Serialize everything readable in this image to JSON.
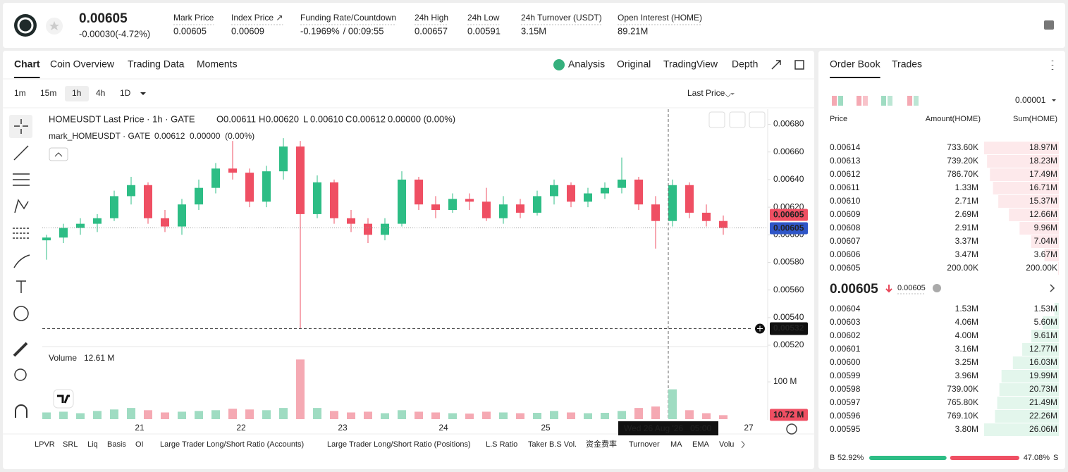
{
  "header": {
    "price": "0.00605",
    "change": "-0.00030(-4.72%)",
    "stats": [
      {
        "label": "Mark Price",
        "value": "0.00605"
      },
      {
        "label": "Index Price ↗",
        "value": "0.00609"
      },
      {
        "label": "Funding Rate/Countdown",
        "value": "-0.1969%",
        "extra": "/ 00:09:55"
      },
      {
        "label": "24h High",
        "value": "0.00657"
      },
      {
        "label": "24h Low",
        "value": "0.00591"
      },
      {
        "label": "24h Turnover (USDT)",
        "value": "3.15M"
      },
      {
        "label": "Open Interest (HOME)",
        "value": "89.21M"
      }
    ]
  },
  "tabs": [
    "Chart",
    "Coin Overview",
    "Trading Data",
    "Moments"
  ],
  "views": [
    "Analysis",
    "Original",
    "TradingView",
    "Depth"
  ],
  "intervals": [
    "1m",
    "15m",
    "1h",
    "4h",
    "1D"
  ],
  "price_source": "Last Price",
  "chart": {
    "legend": {
      "symbol": "HOMEUSDT Last Price · 1h · GATE",
      "ohlc": [
        {
          "k": "O",
          "v": "0.00611"
        },
        {
          "k": "H",
          "v": "0.00620"
        },
        {
          "k": "L",
          "v": "0.00610"
        },
        {
          "k": "C",
          "v": "0.00612"
        }
      ],
      "change": "0.00000 (0.00%)",
      "mark": "mark_HOMEUSDT · GATE",
      "mark_values": "0.00612  0.00000  (0.00%)"
    },
    "ylim": [
      0.00519,
      0.00691
    ],
    "yticks": [
      {
        "value": 0.0068,
        "label": "0.00680"
      },
      {
        "value": 0.0066,
        "label": "0.00660"
      },
      {
        "value": 0.0064,
        "label": "0.00640"
      },
      {
        "value": 0.0062,
        "label": "0.00620"
      },
      {
        "value": 0.006,
        "label": "0.00600"
      },
      {
        "value": 0.0058,
        "label": "0.00580"
      },
      {
        "value": 0.0056,
        "label": "0.00560"
      },
      {
        "value": 0.0054,
        "label": "0.00540"
      },
      {
        "value": 0.0052,
        "label": "0.00520"
      }
    ],
    "last_price": {
      "value": 0.00605,
      "label": "0.00605"
    },
    "mark_price": {
      "value": 0.00605,
      "label": "0.00605"
    },
    "low_marker": {
      "value": 0.00532,
      "label": "0.00532"
    },
    "crosshair": "Wed 26 Aug '26   05:00",
    "days": [
      "21",
      "22",
      "23",
      "24",
      "25",
      "27"
    ],
    "candles": [
      [
        0.00596,
        0.006,
        0.00582,
        0.00598
      ],
      [
        0.00598,
        0.00608,
        0.00594,
        0.00605
      ],
      [
        0.00605,
        0.00612,
        0.006,
        0.00608
      ],
      [
        0.00608,
        0.00615,
        0.00602,
        0.00612
      ],
      [
        0.00612,
        0.00632,
        0.0061,
        0.00628
      ],
      [
        0.00628,
        0.00642,
        0.00622,
        0.00636
      ],
      [
        0.00636,
        0.00638,
        0.00608,
        0.00612
      ],
      [
        0.00612,
        0.00618,
        0.00602,
        0.00606
      ],
      [
        0.00606,
        0.00626,
        0.006,
        0.00622
      ],
      [
        0.00622,
        0.0064,
        0.00618,
        0.00634
      ],
      [
        0.00634,
        0.00652,
        0.0063,
        0.00648
      ],
      [
        0.00648,
        0.00668,
        0.0064,
        0.00645
      ],
      [
        0.00645,
        0.00648,
        0.0062,
        0.00624
      ],
      [
        0.00624,
        0.0065,
        0.0062,
        0.00646
      ],
      [
        0.00646,
        0.0067,
        0.0064,
        0.00664
      ],
      [
        0.00664,
        0.00668,
        0.00532,
        0.00615
      ],
      [
        0.00615,
        0.00643,
        0.00612,
        0.00638
      ],
      [
        0.00638,
        0.0064,
        0.00608,
        0.00612
      ],
      [
        0.00612,
        0.00618,
        0.00602,
        0.00608
      ],
      [
        0.00608,
        0.00612,
        0.00594,
        0.006
      ],
      [
        0.006,
        0.00612,
        0.00596,
        0.00608
      ],
      [
        0.00608,
        0.00646,
        0.00606,
        0.0064
      ],
      [
        0.0064,
        0.00642,
        0.00618,
        0.00622
      ],
      [
        0.00622,
        0.00628,
        0.00612,
        0.00618
      ],
      [
        0.00618,
        0.0063,
        0.00616,
        0.00626
      ],
      [
        0.00626,
        0.0063,
        0.00618,
        0.00624
      ],
      [
        0.00624,
        0.00634,
        0.0061,
        0.00612
      ],
      [
        0.00612,
        0.00628,
        0.00608,
        0.00622
      ],
      [
        0.00622,
        0.00626,
        0.00612,
        0.00616
      ],
      [
        0.00616,
        0.00632,
        0.00614,
        0.00628
      ],
      [
        0.00628,
        0.0064,
        0.00622,
        0.00636
      ],
      [
        0.00636,
        0.00638,
        0.0062,
        0.00624
      ],
      [
        0.00624,
        0.00634,
        0.0062,
        0.0063
      ],
      [
        0.0063,
        0.00638,
        0.00626,
        0.00634
      ],
      [
        0.00634,
        0.00656,
        0.0063,
        0.0064
      ],
      [
        0.0064,
        0.00642,
        0.00618,
        0.00622
      ],
      [
        0.00622,
        0.00628,
        0.0059,
        0.0061
      ],
      [
        0.0061,
        0.0064,
        0.00606,
        0.00636
      ],
      [
        0.00636,
        0.00638,
        0.00612,
        0.00616
      ],
      [
        0.00616,
        0.00622,
        0.00606,
        0.0061
      ],
      [
        0.0061,
        0.00614,
        0.006,
        0.00605
      ]
    ],
    "volume": {
      "title": "Volume",
      "current": "12.61 M",
      "ylim": [
        0,
        170
      ],
      "yticks": [
        {
          "value": 100,
          "label": "100 M"
        }
      ],
      "last": {
        "value": 10.72,
        "label": "10.72 M"
      },
      "values": [
        18,
        20,
        16,
        22,
        26,
        30,
        24,
        18,
        20,
        22,
        24,
        28,
        26,
        24,
        30,
        160,
        30,
        22,
        18,
        20,
        16,
        24,
        20,
        18,
        16,
        15,
        20,
        18,
        16,
        17,
        22,
        18,
        16,
        17,
        22,
        30,
        34,
        80,
        24,
        16,
        10.72
      ]
    }
  },
  "indicators": [
    "LPVR",
    "SRL",
    "Liq",
    "Basis",
    "OI",
    "Large Trader Long/Short Ratio (Accounts)",
    "Large Trader Long/Short Ratio (Positions)",
    "L.S Ratio",
    "Taker B.S Vol.",
    "资金费率",
    "Turnover",
    "MA",
    "EMA",
    "Volu"
  ],
  "order_book": {
    "tabs": [
      "Order Book",
      "Trades"
    ],
    "precision": "0.00001",
    "headers": [
      "Price",
      "Amount(HOME)",
      "Sum(HOME)"
    ],
    "asks": [
      [
        "0.00614",
        "733.60K",
        {
          "value": 18.97,
          "label": "18.97M"
        }
      ],
      [
        "0.00613",
        "739.20K",
        {
          "value": 18.23,
          "label": "18.23M"
        }
      ],
      [
        "0.00612",
        "786.70K",
        {
          "value": 17.49,
          "label": "17.49M"
        }
      ],
      [
        "0.00611",
        "1.33M",
        {
          "value": 16.71,
          "label": "16.71M"
        }
      ],
      [
        "0.00610",
        "2.71M",
        {
          "value": 15.37,
          "label": "15.37M"
        }
      ],
      [
        "0.00609",
        "2.69M",
        {
          "value": 12.66,
          "label": "12.66M"
        }
      ],
      [
        "0.00608",
        "2.91M",
        {
          "value": 9.96,
          "label": "9.96M"
        }
      ],
      [
        "0.00607",
        "3.37M",
        {
          "value": 7.04,
          "label": "7.04M"
        }
      ],
      [
        "0.00606",
        "3.47M",
        {
          "value": 3.67,
          "label": "3.67M"
        }
      ],
      [
        "0.00605",
        "200.00K",
        {
          "value": 0.2,
          "label": "200.00K"
        }
      ]
    ],
    "mid": {
      "price": "0.00605",
      "mark": "0.00605"
    },
    "bids": [
      [
        "0.00604",
        "1.53M",
        {
          "value": 1.53,
          "label": "1.53M"
        }
      ],
      [
        "0.00603",
        "4.06M",
        {
          "value": 5.6,
          "label": "5.60M"
        }
      ],
      [
        "0.00602",
        "4.00M",
        {
          "value": 9.61,
          "label": "9.61M"
        }
      ],
      [
        "0.00601",
        "3.16M",
        {
          "value": 12.77,
          "label": "12.77M"
        }
      ],
      [
        "0.00600",
        "3.25M",
        {
          "value": 16.03,
          "label": "16.03M"
        }
      ],
      [
        "0.00599",
        "3.96M",
        {
          "value": 19.99,
          "label": "19.99M"
        }
      ],
      [
        "0.00598",
        "739.00K",
        {
          "value": 20.73,
          "label": "20.73M"
        }
      ],
      [
        "0.00597",
        "765.80K",
        {
          "value": 21.49,
          "label": "21.49M"
        }
      ],
      [
        "0.00596",
        "769.10K",
        {
          "value": 22.26,
          "label": "22.26M"
        }
      ],
      [
        "0.00595",
        "3.80M",
        {
          "value": 26.06,
          "label": "26.06M"
        }
      ]
    ],
    "ratio": {
      "b": "B",
      "buy": {
        "value": 52.92,
        "label": "52.92%"
      },
      "sell": {
        "value": 47.08,
        "label": "47.08%"
      },
      "s": "S"
    }
  }
}
